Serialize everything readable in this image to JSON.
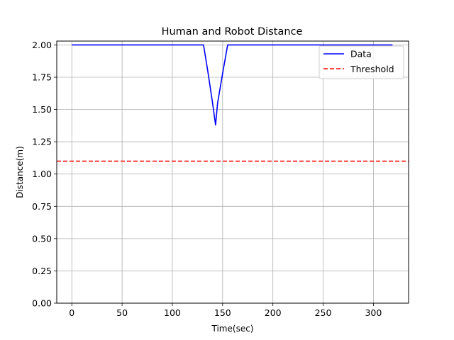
{
  "chart_data": {
    "type": "line",
    "title": "Human and Robot Distance",
    "xlabel": "Time(sec)",
    "ylabel": "Distance(m)",
    "xlim": [
      -15,
      335
    ],
    "ylim": [
      0,
      2.03
    ],
    "xticks": [
      0,
      50,
      100,
      150,
      200,
      250,
      300
    ],
    "yticks": [
      0.0,
      0.25,
      0.5,
      0.75,
      1.0,
      1.25,
      1.5,
      1.75,
      2.0
    ],
    "xtick_labels": [
      "0",
      "50",
      "100",
      "150",
      "200",
      "250",
      "300"
    ],
    "ytick_labels": [
      "0.00",
      "0.25",
      "0.50",
      "0.75",
      "1.00",
      "1.25",
      "1.50",
      "1.75",
      "2.00"
    ],
    "grid": true,
    "legend_position": "top-right",
    "series": [
      {
        "name": "Data",
        "color": "#0000ff",
        "style": "solid",
        "x": [
          0,
          50,
          100,
          131,
          135,
          140,
          143,
          145,
          150,
          155,
          200,
          250,
          300,
          319
        ],
        "y": [
          2.0,
          2.0,
          2.0,
          2.0,
          1.81,
          1.55,
          1.38,
          1.55,
          1.78,
          2.0,
          2.0,
          2.0,
          2.0,
          2.0
        ]
      },
      {
        "name": "Threshold",
        "color": "#ff0000",
        "style": "dashed",
        "x": [
          -15,
          335
        ],
        "y": [
          1.1,
          1.1
        ]
      }
    ]
  }
}
